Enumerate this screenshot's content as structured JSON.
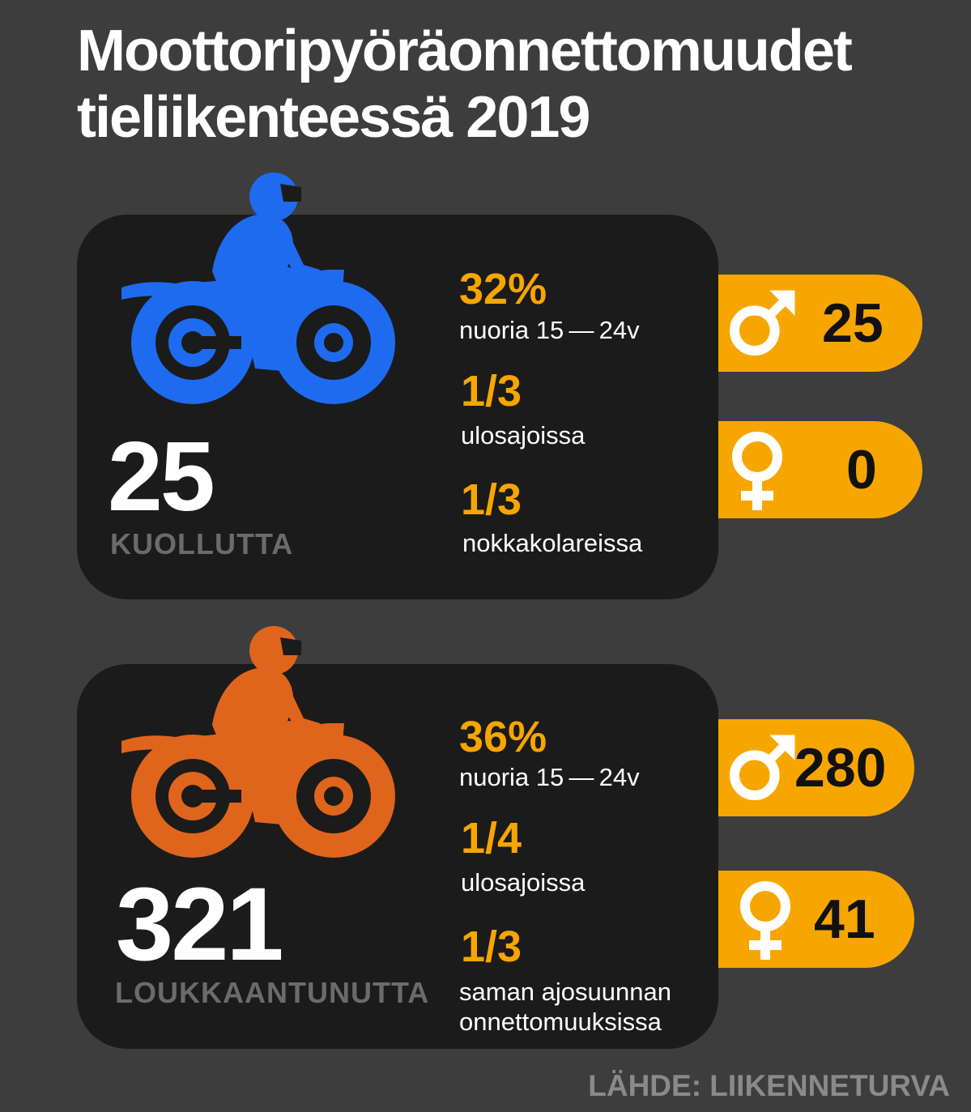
{
  "title": {
    "line1": "Moottoripyöräonnettomuudet",
    "line2": "tieliikenteessä 2019"
  },
  "colors": {
    "background": "#3d3d3d",
    "card": "#1b1b1b",
    "accent": "#f7a600",
    "fatal_bike": "#1e6bf0",
    "injury_bike": "#e0651c"
  },
  "fatalities": {
    "total": "25",
    "label": "KUOLLUTTA",
    "bike_icon": "motorcycle-rider-icon",
    "stats": [
      {
        "value": "32%",
        "text": "nuoria 15 — 24v"
      },
      {
        "value": "1/3",
        "text": "ulosajoissa"
      },
      {
        "value": "1/3",
        "text": "nokkakolareissa"
      }
    ],
    "male": {
      "icon": "male-symbol-icon",
      "value": "25"
    },
    "female": {
      "icon": "female-symbol-icon",
      "value": "0"
    }
  },
  "injuries": {
    "total": "321",
    "label": "LOUKKAANTUNUTTA",
    "bike_icon": "motorcycle-rider-icon",
    "stats": [
      {
        "value": "36%",
        "text": "nuoria 15 — 24v"
      },
      {
        "value": "1/4",
        "text": "ulosajoissa"
      },
      {
        "value": "1/3",
        "text_line1": "saman ajosuunnan",
        "text_line2": "onnettomuuksissa"
      }
    ],
    "male": {
      "icon": "male-symbol-icon",
      "value": "280"
    },
    "female": {
      "icon": "female-symbol-icon",
      "value": "41"
    }
  },
  "source": "LÄHDE: LIIKENNETURVA"
}
